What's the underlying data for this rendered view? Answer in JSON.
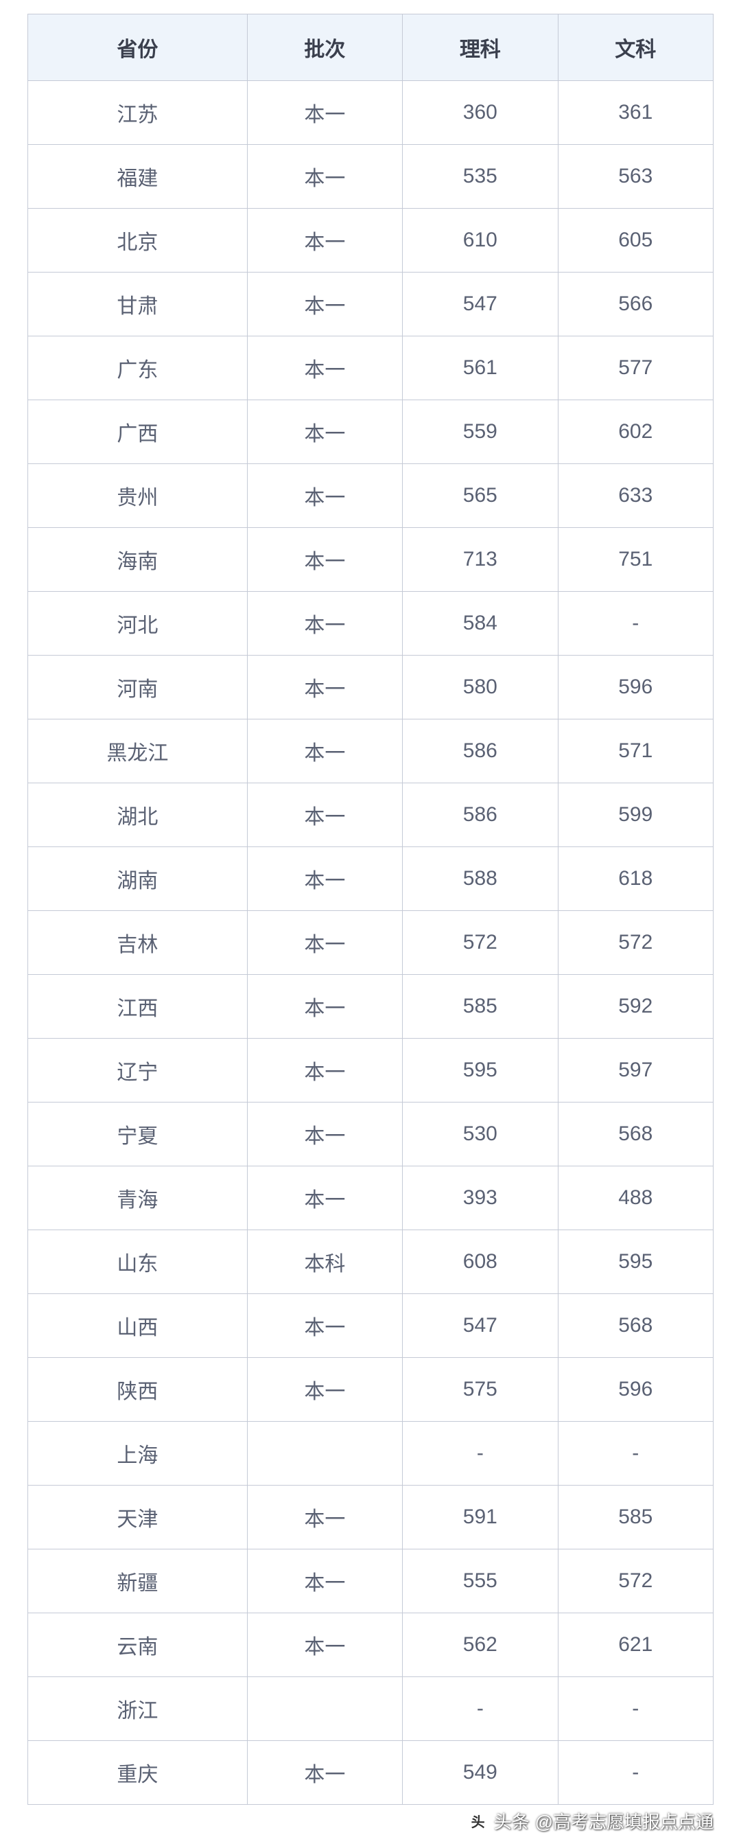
{
  "table": {
    "columns": [
      "省份",
      "批次",
      "理科",
      "文科"
    ],
    "header_bg": "#eef4fb",
    "border_color": "#c5cad6",
    "header_text_color": "#3a3f4d",
    "cell_text_color": "#5a6173",
    "font_size": 30,
    "rows": [
      [
        "江苏",
        "本一",
        "360",
        "361"
      ],
      [
        "福建",
        "本一",
        "535",
        "563"
      ],
      [
        "北京",
        "本一",
        "610",
        "605"
      ],
      [
        "甘肃",
        "本一",
        "547",
        "566"
      ],
      [
        "广东",
        "本一",
        "561",
        "577"
      ],
      [
        "广西",
        "本一",
        "559",
        "602"
      ],
      [
        "贵州",
        "本一",
        "565",
        "633"
      ],
      [
        "海南",
        "本一",
        "713",
        "751"
      ],
      [
        "河北",
        "本一",
        "584",
        "-"
      ],
      [
        "河南",
        "本一",
        "580",
        "596"
      ],
      [
        "黑龙江",
        "本一",
        "586",
        "571"
      ],
      [
        "湖北",
        "本一",
        "586",
        "599"
      ],
      [
        "湖南",
        "本一",
        "588",
        "618"
      ],
      [
        "吉林",
        "本一",
        "572",
        "572"
      ],
      [
        "江西",
        "本一",
        "585",
        "592"
      ],
      [
        "辽宁",
        "本一",
        "595",
        "597"
      ],
      [
        "宁夏",
        "本一",
        "530",
        "568"
      ],
      [
        "青海",
        "本一",
        "393",
        "488"
      ],
      [
        "山东",
        "本科",
        "608",
        "595"
      ],
      [
        "山西",
        "本一",
        "547",
        "568"
      ],
      [
        "陕西",
        "本一",
        "575",
        "596"
      ],
      [
        "上海",
        "",
        "-",
        "-"
      ],
      [
        "天津",
        "本一",
        "591",
        "585"
      ],
      [
        "新疆",
        "本一",
        "555",
        "572"
      ],
      [
        "云南",
        "本一",
        "562",
        "621"
      ],
      [
        "浙江",
        "",
        "-",
        "-"
      ],
      [
        "重庆",
        "本一",
        "549",
        "-"
      ]
    ]
  },
  "watermark": {
    "prefix": "头条",
    "text": "@高考志愿填报点点通"
  }
}
